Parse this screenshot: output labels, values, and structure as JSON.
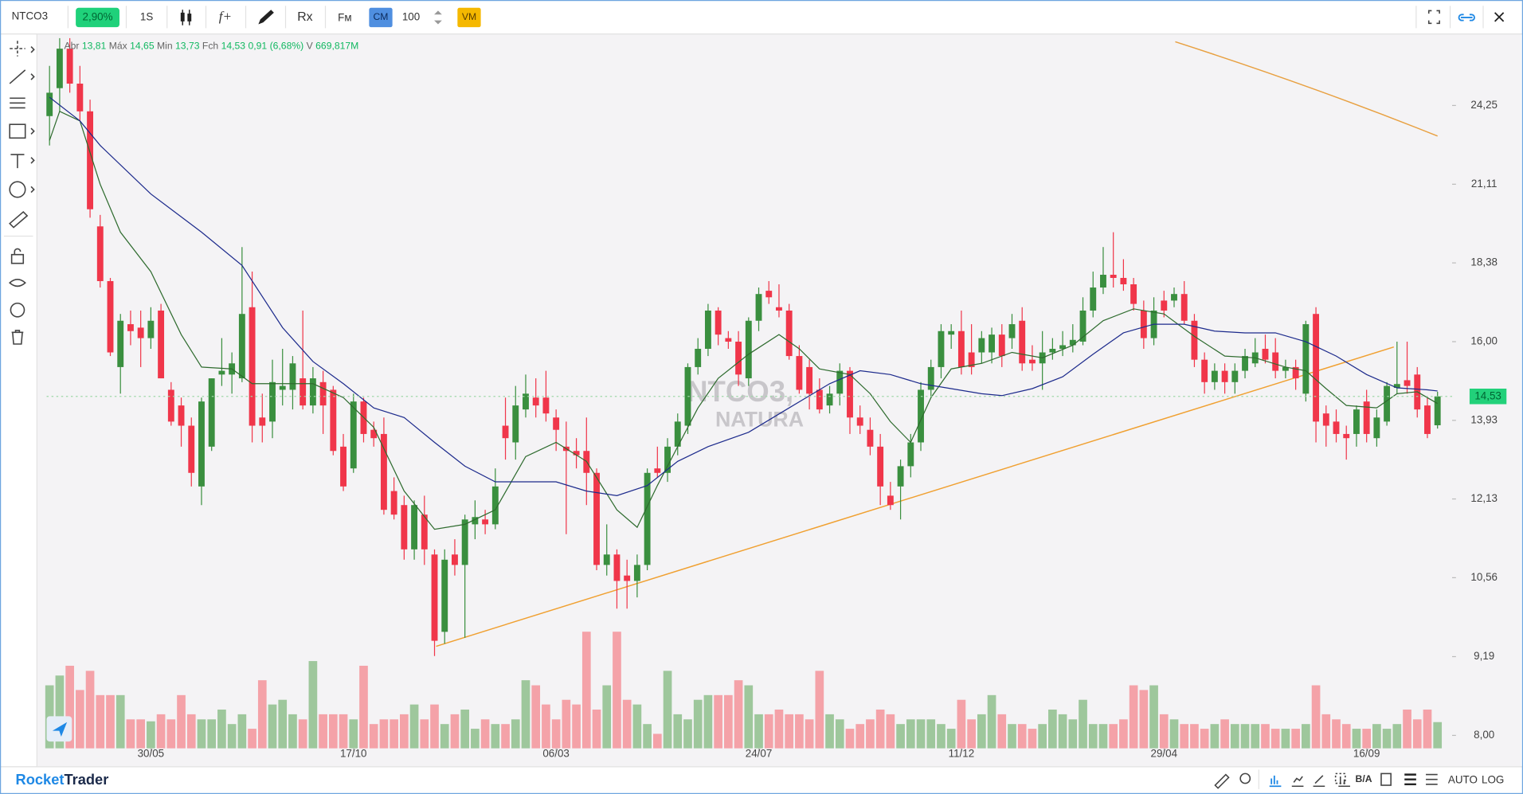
{
  "toolbar": {
    "symbol": "NTCO3",
    "change": "2,90%",
    "interval": "1S",
    "study": "f+",
    "rx": "Rx",
    "fm": "Fм",
    "cm": "CM",
    "quantity": "100",
    "vm": "VM"
  },
  "ohlc_header": {
    "open_label": "Abr",
    "open": "13,81",
    "high_label": "Máx",
    "high": "14,65",
    "low_label": "Min",
    "low": "13,73",
    "close_label": "Fch",
    "close": "14,53",
    "change": "0,91 (6,68%)",
    "volume_label": "V",
    "volume": "669,817M"
  },
  "watermark": {
    "symbol": "NTCO3,",
    "name": "NATURA"
  },
  "chart_data": {
    "type": "candlestick",
    "categories": [
      null,
      null,
      null,
      null,
      null,
      null,
      null,
      null,
      null,
      null,
      "30/05",
      null,
      null,
      null,
      null,
      null,
      null,
      null,
      null,
      null,
      null,
      null,
      null,
      null,
      null,
      null,
      null,
      null,
      null,
      null,
      "17/10",
      null,
      null,
      null,
      null,
      null,
      null,
      null,
      null,
      null,
      null,
      null,
      null,
      null,
      null,
      null,
      null,
      null,
      null,
      null,
      "06/03",
      null,
      null,
      null,
      null,
      null,
      null,
      null,
      null,
      null,
      null,
      null,
      null,
      null,
      null,
      null,
      null,
      null,
      null,
      null,
      "24/07",
      null,
      null,
      null,
      null,
      null,
      null,
      null,
      null,
      null,
      null,
      null,
      null,
      null,
      null,
      null,
      null,
      null,
      null,
      null,
      "11/12",
      null,
      null,
      null,
      null,
      null,
      null,
      null,
      null,
      null,
      null,
      null,
      null,
      null,
      null,
      null,
      null,
      null,
      null,
      null,
      "29/04",
      null,
      null,
      null,
      null,
      null,
      null,
      null,
      null,
      null,
      null,
      null,
      null,
      null,
      null,
      null,
      null,
      null,
      null,
      null,
      "16/09",
      null,
      null,
      null,
      null,
      null,
      null,
      null
    ],
    "ohlc": [
      [
        23.8,
        26.0,
        22.6,
        24.8
      ],
      [
        25.0,
        27.3,
        24.0,
        26.8
      ],
      [
        26.8,
        27.3,
        24.8,
        25.2
      ],
      [
        25.2,
        26.0,
        23.6,
        24.0
      ],
      [
        24.0,
        24.5,
        19.9,
        20.2
      ],
      [
        19.6,
        20.0,
        17.6,
        17.8
      ],
      [
        17.8,
        17.9,
        15.6,
        15.7
      ],
      [
        15.3,
        16.8,
        14.6,
        16.6
      ],
      [
        16.5,
        16.9,
        15.9,
        16.3
      ],
      [
        16.4,
        16.9,
        15.3,
        16.1
      ],
      [
        16.1,
        17.0,
        15.8,
        16.6
      ],
      [
        16.9,
        17.1,
        15.0,
        15.0
      ],
      [
        14.7,
        14.9,
        13.8,
        13.9
      ],
      [
        14.3,
        14.5,
        13.3,
        13.8
      ],
      [
        13.8,
        14.0,
        12.4,
        12.7
      ],
      [
        12.4,
        14.5,
        12.0,
        14.4
      ],
      [
        13.3,
        15.0,
        13.2,
        15.0
      ],
      [
        15.1,
        16.1,
        14.8,
        15.2
      ],
      [
        15.1,
        15.7,
        14.6,
        15.4
      ],
      [
        15.0,
        18.9,
        14.9,
        16.8
      ],
      [
        17.0,
        18.1,
        13.4,
        13.8
      ],
      [
        14.0,
        14.6,
        13.4,
        13.8
      ],
      [
        13.9,
        15.5,
        13.5,
        14.9
      ],
      [
        14.7,
        15.8,
        14.3,
        14.8
      ],
      [
        14.7,
        15.6,
        14.2,
        15.4
      ],
      [
        15.0,
        16.9,
        14.2,
        14.3
      ],
      [
        14.3,
        15.3,
        14.1,
        15.0
      ],
      [
        14.9,
        15.2,
        13.6,
        14.3
      ],
      [
        14.7,
        14.8,
        13.1,
        13.2
      ],
      [
        13.3,
        13.6,
        12.3,
        12.4
      ],
      [
        12.8,
        14.6,
        12.7,
        14.4
      ],
      [
        14.4,
        14.5,
        13.4,
        13.6
      ],
      [
        13.7,
        13.9,
        13.3,
        13.5
      ],
      [
        13.6,
        14.0,
        11.8,
        11.9
      ],
      [
        12.3,
        12.6,
        11.7,
        11.8
      ],
      [
        12.0,
        12.2,
        10.9,
        11.1
      ],
      [
        11.1,
        12.1,
        10.9,
        12.0
      ],
      [
        11.8,
        12.2,
        10.8,
        11.1
      ],
      [
        11.0,
        11.1,
        9.2,
        9.45
      ],
      [
        9.6,
        11.1,
        9.4,
        10.9
      ],
      [
        11.0,
        11.3,
        10.6,
        10.8
      ],
      [
        10.8,
        11.8,
        9.5,
        11.7
      ],
      [
        11.6,
        12.1,
        11.3,
        11.75
      ],
      [
        11.7,
        11.9,
        11.4,
        11.6
      ],
      [
        11.6,
        12.8,
        11.5,
        12.4
      ],
      [
        13.8,
        14.5,
        13.0,
        13.5
      ],
      [
        13.4,
        14.8,
        13.0,
        14.3
      ],
      [
        14.2,
        15.1,
        14.0,
        14.6
      ],
      [
        14.5,
        15.0,
        14.0,
        14.3
      ],
      [
        14.5,
        15.2,
        13.9,
        14.1
      ],
      [
        14.0,
        14.2,
        13.2,
        13.7
      ],
      [
        13.3,
        13.9,
        11.4,
        13.2
      ],
      [
        13.2,
        13.5,
        12.8,
        13.1
      ],
      [
        13.2,
        14.0,
        12.0,
        12.7
      ],
      [
        12.7,
        12.8,
        10.7,
        10.8
      ],
      [
        10.8,
        11.6,
        10.6,
        11.0
      ],
      [
        11.0,
        11.1,
        10.0,
        10.5
      ],
      [
        10.6,
        10.9,
        10.0,
        10.5
      ],
      [
        10.5,
        11.0,
        10.2,
        10.8
      ],
      [
        10.8,
        12.8,
        10.7,
        12.7
      ],
      [
        12.8,
        13.3,
        12.6,
        12.7
      ],
      [
        12.7,
        13.5,
        12.5,
        13.3
      ],
      [
        13.3,
        14.1,
        13.1,
        13.9
      ],
      [
        13.8,
        15.4,
        13.6,
        15.3
      ],
      [
        15.3,
        16.1,
        15.1,
        15.8
      ],
      [
        15.8,
        17.1,
        15.6,
        16.9
      ],
      [
        16.9,
        17.0,
        15.9,
        16.2
      ],
      [
        16.1,
        16.3,
        15.8,
        16.0
      ],
      [
        16.0,
        16.3,
        14.8,
        15.1
      ],
      [
        15.0,
        16.7,
        14.8,
        16.6
      ],
      [
        16.6,
        17.6,
        16.3,
        17.4
      ],
      [
        17.5,
        17.8,
        17.1,
        17.3
      ],
      [
        17.0,
        17.7,
        16.7,
        16.9
      ],
      [
        16.9,
        17.1,
        15.5,
        15.6
      ],
      [
        15.6,
        15.9,
        14.6,
        14.7
      ],
      [
        15.3,
        15.5,
        14.2,
        14.6
      ],
      [
        14.7,
        15.0,
        14.1,
        14.2
      ],
      [
        14.3,
        14.8,
        14.1,
        14.6
      ],
      [
        14.6,
        15.4,
        14.3,
        15.2
      ],
      [
        15.2,
        15.3,
        13.6,
        14.0
      ],
      [
        14.0,
        14.3,
        13.6,
        13.8
      ],
      [
        13.7,
        14.0,
        13.1,
        13.3
      ],
      [
        13.3,
        13.6,
        12.0,
        12.4
      ],
      [
        12.2,
        12.5,
        11.9,
        12.0
      ],
      [
        12.4,
        13.0,
        11.7,
        12.85
      ],
      [
        12.85,
        13.6,
        12.6,
        13.4
      ],
      [
        13.4,
        14.9,
        13.2,
        14.7
      ],
      [
        14.7,
        15.5,
        14.5,
        15.3
      ],
      [
        15.3,
        16.5,
        15.0,
        16.3
      ],
      [
        16.2,
        16.5,
        15.8,
        16.3
      ],
      [
        16.3,
        16.9,
        15.1,
        15.3
      ],
      [
        15.7,
        16.5,
        15.1,
        15.3
      ],
      [
        15.7,
        16.3,
        15.4,
        16.1
      ],
      [
        15.7,
        16.4,
        15.4,
        16.2
      ],
      [
        16.2,
        16.5,
        15.3,
        15.6
      ],
      [
        16.1,
        16.8,
        15.8,
        16.5
      ],
      [
        16.6,
        17.0,
        15.2,
        15.4
      ],
      [
        15.5,
        15.9,
        15.2,
        15.4
      ],
      [
        15.4,
        16.3,
        14.7,
        15.7
      ],
      [
        15.7,
        16.1,
        15.5,
        15.8
      ],
      [
        15.8,
        16.3,
        15.6,
        15.9
      ],
      [
        15.9,
        16.5,
        15.7,
        16.05
      ],
      [
        16.0,
        17.3,
        15.9,
        16.9
      ],
      [
        16.9,
        18.1,
        16.7,
        17.6
      ],
      [
        17.6,
        18.9,
        17.4,
        18.0
      ],
      [
        18.0,
        19.4,
        17.6,
        17.9
      ],
      [
        17.9,
        18.5,
        17.5,
        17.7
      ],
      [
        17.7,
        17.9,
        16.9,
        17.1
      ],
      [
        16.9,
        17.2,
        15.8,
        16.1
      ],
      [
        16.1,
        17.3,
        15.9,
        16.9
      ],
      [
        17.2,
        17.5,
        16.7,
        16.9
      ],
      [
        17.2,
        17.6,
        17.0,
        17.4
      ],
      [
        17.4,
        17.8,
        16.5,
        16.6
      ],
      [
        16.6,
        16.8,
        15.3,
        15.5
      ],
      [
        15.5,
        15.7,
        14.6,
        14.9
      ],
      [
        14.9,
        15.4,
        14.7,
        15.2
      ],
      [
        15.2,
        15.4,
        14.6,
        14.9
      ],
      [
        14.9,
        15.4,
        14.6,
        15.2
      ],
      [
        15.2,
        15.8,
        15.0,
        15.6
      ],
      [
        15.4,
        16.1,
        15.3,
        15.7
      ],
      [
        15.8,
        16.2,
        15.4,
        15.5
      ],
      [
        15.7,
        16.1,
        15.0,
        15.2
      ],
      [
        15.2,
        15.5,
        15.0,
        15.3
      ],
      [
        15.3,
        15.5,
        14.7,
        15.0
      ],
      [
        14.6,
        16.6,
        14.4,
        16.5
      ],
      [
        16.8,
        17.0,
        13.4,
        13.9
      ],
      [
        14.1,
        14.3,
        13.3,
        13.8
      ],
      [
        13.9,
        14.2,
        13.4,
        13.6
      ],
      [
        13.6,
        13.8,
        13.0,
        13.5
      ],
      [
        13.6,
        14.3,
        13.3,
        14.2
      ],
      [
        14.4,
        14.7,
        13.4,
        13.6
      ],
      [
        13.5,
        14.2,
        13.3,
        14.0
      ],
      [
        13.9,
        14.9,
        13.8,
        14.8
      ],
      [
        14.75,
        16.0,
        14.6,
        14.85
      ],
      [
        14.95,
        16.0,
        14.6,
        14.8
      ],
      [
        15.1,
        15.3,
        14.0,
        14.2
      ],
      [
        14.3,
        14.5,
        13.5,
        13.6
      ],
      [
        13.81,
        14.65,
        13.73,
        14.53
      ]
    ],
    "volume": [
      1610,
      1860,
      2110,
      1490,
      1980,
      1360,
      1360,
      1360,
      740,
      740,
      690,
      870,
      740,
      1360,
      870,
      740,
      740,
      990,
      620,
      870,
      500,
      1740,
      1120,
      1240,
      870,
      740,
      2230,
      870,
      870,
      870,
      740,
      2110,
      620,
      740,
      740,
      870,
      1120,
      740,
      1120,
      620,
      870,
      990,
      500,
      740,
      620,
      620,
      740,
      1740,
      1610,
      1120,
      740,
      1240,
      1120,
      2980,
      990,
      1610,
      2980,
      1240,
      1120,
      620,
      370,
      1980,
      870,
      740,
      1240,
      1360,
      1360,
      1360,
      1740,
      1610,
      870,
      870,
      990,
      870,
      870,
      740,
      1980,
      870,
      740,
      500,
      620,
      740,
      990,
      870,
      620,
      740,
      740,
      740,
      620,
      500,
      1240,
      740,
      870,
      1360,
      870,
      620,
      620,
      500,
      620,
      990,
      870,
      740,
      1240,
      620,
      620,
      620,
      740,
      1610,
      1490,
      1610,
      870,
      740,
      620,
      620,
      500,
      620,
      740,
      620,
      620,
      620,
      620,
      500,
      500,
      500,
      620,
      1610,
      870,
      740,
      620,
      500,
      500,
      620,
      500,
      620,
      990,
      740,
      990,
      670
    ],
    "up_color": "#3a8f3f",
    "down_color": "#f0364a",
    "volume_up_color": "#9ec79c",
    "volume_down_color": "#f4a2a8",
    "ylim": [
      7.82,
      27.5
    ],
    "log_scale": true,
    "yticks": [
      {
        "value": 8,
        "label": "8,00"
      },
      {
        "value": 9.19,
        "label": "9,19"
      },
      {
        "value": 10.56,
        "label": "10,56"
      },
      {
        "value": 12.13,
        "label": "12,13"
      },
      {
        "value": 13.93,
        "label": "13,93"
      },
      {
        "value": 16,
        "label": "16,00"
      },
      {
        "value": 18.38,
        "label": "18,38"
      },
      {
        "value": 21.11,
        "label": "21,11"
      },
      {
        "value": 24.25,
        "label": "24,25"
      }
    ],
    "last_price": {
      "value": 14.53,
      "label": "14,53"
    },
    "moving_averages": [
      {
        "color": "#2e6b2e",
        "x": [
          0,
          1,
          3,
          5,
          7,
          10,
          13,
          15,
          18,
          20,
          23,
          26,
          29,
          32,
          35,
          38,
          41,
          44,
          47,
          50,
          53,
          56,
          58,
          60,
          62,
          64,
          66,
          69,
          72,
          74,
          76,
          79,
          81,
          83,
          85,
          87,
          89,
          92,
          95,
          98,
          101,
          104,
          107,
          110,
          113,
          116,
          119,
          122,
          124,
          126,
          128,
          131,
          133,
          135,
          137
        ],
        "values": [
          22.8,
          24.0,
          23.6,
          21.1,
          19.4,
          18.1,
          16.2,
          15.3,
          15.25,
          14.86,
          14.86,
          14.86,
          14.5,
          13.76,
          12.3,
          11.5,
          11.6,
          11.9,
          13.07,
          13.4,
          12.96,
          11.9,
          11.54,
          12.42,
          13.3,
          14.24,
          15.0,
          15.65,
          16.2,
          15.8,
          15.25,
          15.1,
          14.6,
          13.9,
          13.4,
          14.5,
          15.25,
          15.4,
          15.7,
          15.55,
          15.9,
          16.6,
          16.95,
          16.8,
          16.15,
          15.6,
          15.55,
          15.3,
          15.2,
          14.73,
          14.3,
          14.24,
          14.6,
          14.65,
          14.35
        ]
      },
      {
        "color": "#1c2a8c",
        "x": [
          0,
          3,
          5,
          10,
          15,
          19,
          23,
          26,
          29,
          32,
          35,
          38,
          41,
          44,
          47,
          50,
          53,
          56,
          59,
          62,
          65,
          69,
          73,
          77,
          80,
          83,
          86,
          89,
          92,
          94,
          97,
          100,
          103,
          106,
          109,
          112,
          115,
          118,
          121,
          124,
          127,
          130,
          133,
          136,
          137
        ],
        "values": [
          24.6,
          23.6,
          22.6,
          20.75,
          19.4,
          18.3,
          16.4,
          15.45,
          14.86,
          14.24,
          14.0,
          13.4,
          12.85,
          12.5,
          12.5,
          12.5,
          12.3,
          12.2,
          12.42,
          12.96,
          13.3,
          13.64,
          14.24,
          14.86,
          15.2,
          15.1,
          14.86,
          14.73,
          14.6,
          14.55,
          14.73,
          15.04,
          15.65,
          16.25,
          16.5,
          16.5,
          16.3,
          16.25,
          16.25,
          16.0,
          15.6,
          15.1,
          14.75,
          14.7,
          14.67
        ]
      }
    ]
  },
  "footer": {
    "brand_rocket": "Rocket",
    "brand_trader": "Trader",
    "bid_ask": "B/A",
    "auto": "AUTO",
    "log": "LOG"
  }
}
